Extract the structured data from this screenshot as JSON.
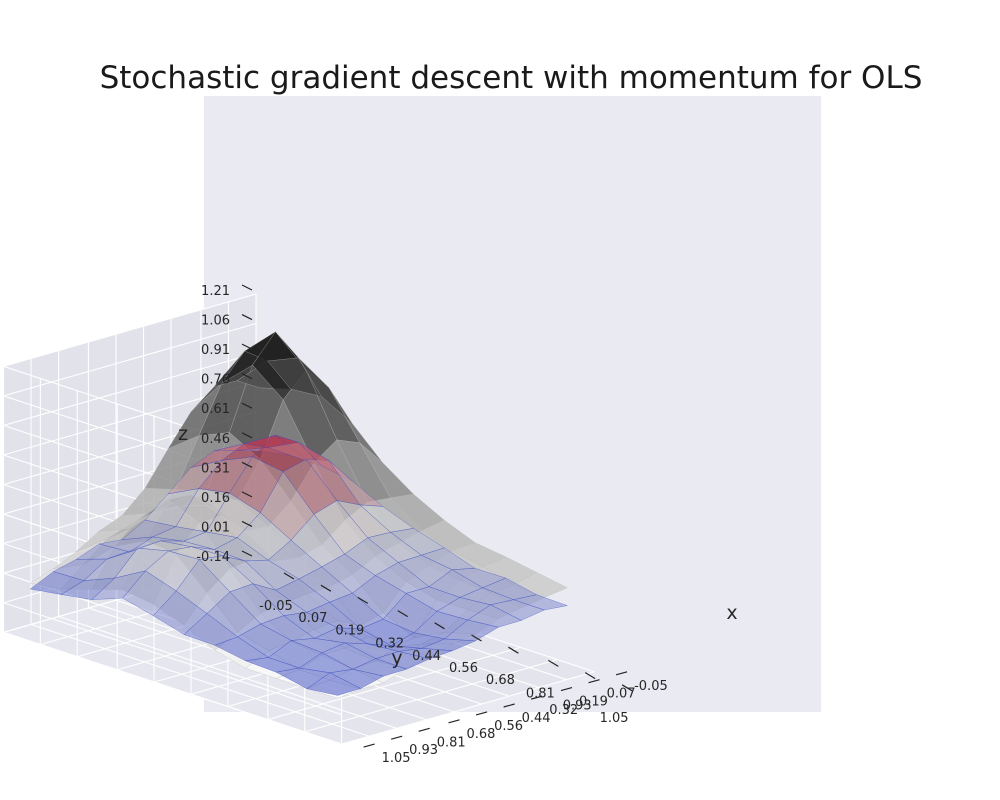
{
  "chart_data": {
    "type": "surface",
    "title": "Stochastic gradient descent with momentum for OLS",
    "xlabel": "x",
    "ylabel": "y",
    "zlabel": "z",
    "x_ticks": [
      "-0.05",
      "0.07",
      "0.19",
      "0.32",
      "0.44",
      "0.56",
      "0.68",
      "0.81",
      "0.93",
      "1.05"
    ],
    "y_ticks": [
      "-0.05",
      "0.07",
      "0.19",
      "0.32",
      "0.44",
      "0.56",
      "0.68",
      "0.81",
      "0.93",
      "1.05"
    ],
    "z_ticks": [
      "-0.14",
      "0.01",
      "0.16",
      "0.31",
      "0.46",
      "0.61",
      "0.76",
      "0.91",
      "1.06",
      "1.21"
    ],
    "xlim": [
      -0.05,
      1.05
    ],
    "ylim": [
      -0.05,
      1.05
    ],
    "zlim": [
      -0.14,
      1.21
    ],
    "grid": true,
    "grid_x": [
      0.0,
      0.1,
      0.2,
      0.3,
      0.4,
      0.5,
      0.6,
      0.7,
      0.8,
      0.9,
      1.0
    ],
    "grid_y": [
      0.0,
      0.1,
      0.2,
      0.3,
      0.4,
      0.5,
      0.6,
      0.7,
      0.8,
      0.9,
      1.0
    ],
    "series": [
      {
        "kind": "reference_surface",
        "colormap": "gray",
        "opacity": 0.85
      },
      {
        "kind": "fitted_surface",
        "colormap": "coolwarm",
        "opacity": 0.55
      }
    ],
    "colors": {
      "pane": "#e8e8f0",
      "axes_background": "#eaeaf2",
      "grid": "#ffffff",
      "cool": "#3b4cc0",
      "warm": "#b40426"
    }
  }
}
